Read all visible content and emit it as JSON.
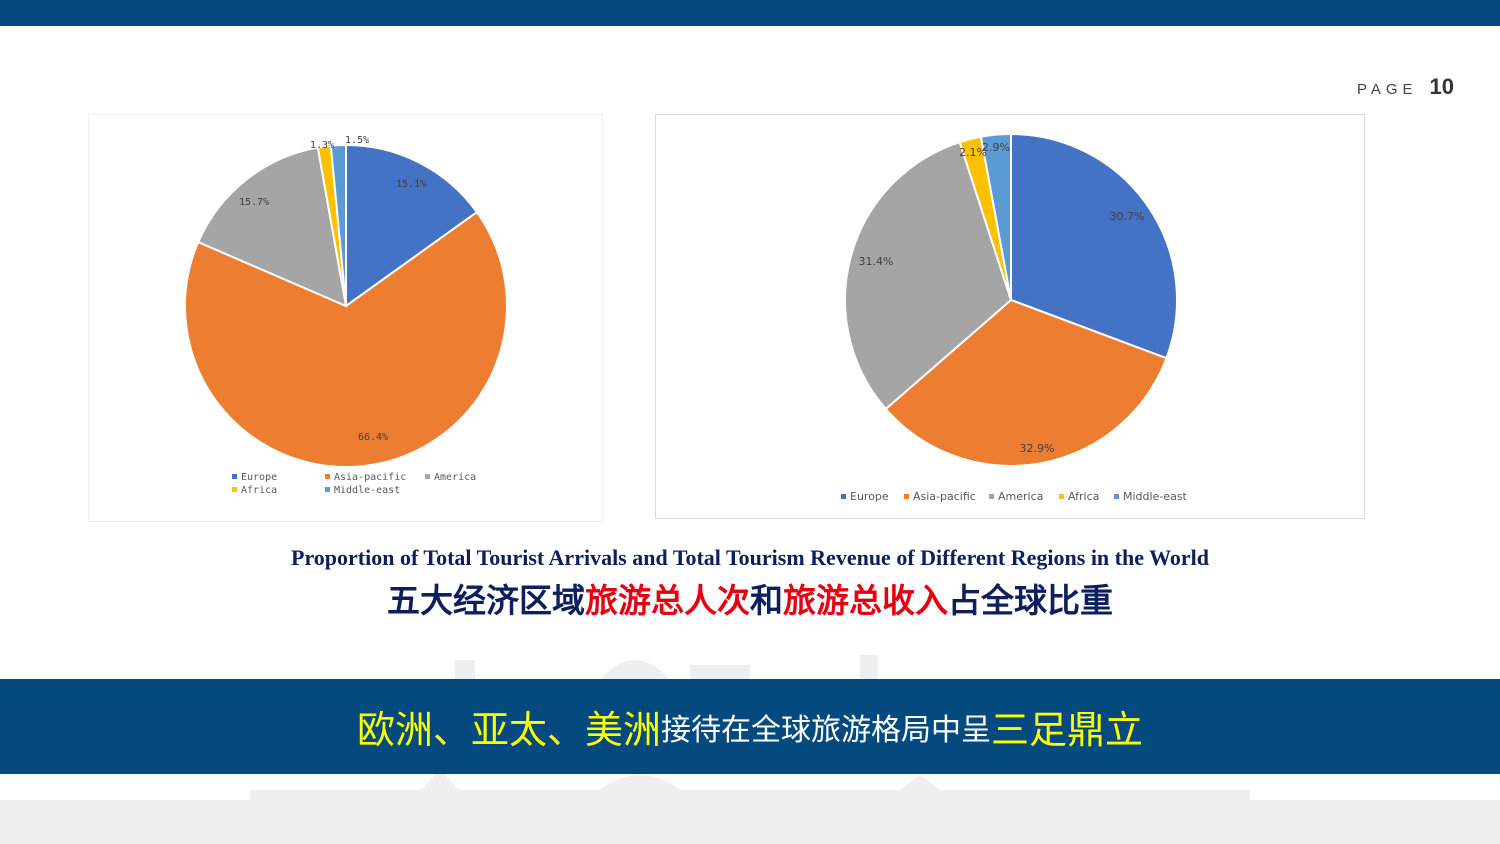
{
  "header": {
    "page_word": "PAGE",
    "page_number": "10"
  },
  "colors": {
    "brand_blue": "#044a7f",
    "europe": "#4472c4",
    "asia_pacific": "#ed7d31",
    "america": "#a5a5a5",
    "africa": "#ffc000",
    "middle_east": "#5b9bd5",
    "red": "#e50012",
    "yellow": "#ffff00"
  },
  "chart_data": [
    {
      "type": "pie",
      "title": "",
      "categories": [
        "Europe",
        "Asia-pacific",
        "America",
        "Africa",
        "Middle-east"
      ],
      "values": [
        15.1,
        66.4,
        15.7,
        1.3,
        1.5
      ],
      "labels": [
        "15.1%",
        "66.4%",
        "15.7%",
        "1.3%",
        "1.5%"
      ],
      "legend": "bottom"
    },
    {
      "type": "pie",
      "title": "",
      "categories": [
        "Europe",
        "Asia-pacific",
        "America",
        "Africa",
        "Middle-east"
      ],
      "values": [
        30.7,
        32.9,
        31.4,
        2.1,
        2.9
      ],
      "labels": [
        "30.7%",
        "32.9%",
        "31.4%",
        "2.1%",
        "2.9%"
      ],
      "legend": "bottom"
    }
  ],
  "caption": {
    "english": "Proportion of Total Tourist Arrivals and Total Tourism Revenue of  Different Regions in the World",
    "zh_part1": "五大经济区域",
    "zh_part2": "旅游总人次",
    "zh_part3": "和",
    "zh_part4": "旅游总收入",
    "zh_part5": "占全球比重"
  },
  "banner": {
    "part1": "欧洲、亚太、美洲",
    "part2": "接待在全球旅游格局中呈",
    "part3": "三足鼎立"
  }
}
